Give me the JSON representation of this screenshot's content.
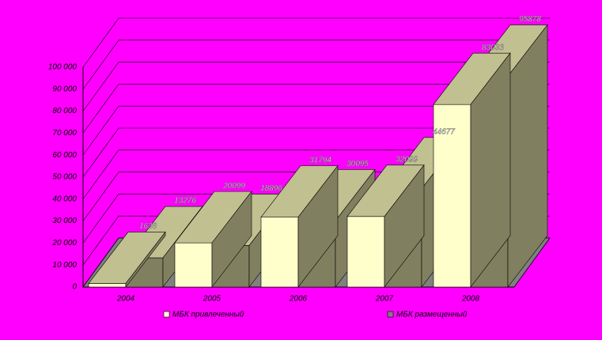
{
  "chart_data": {
    "type": "bar3d",
    "categories": [
      "2004",
      "2005",
      "2006",
      "2007",
      "2008"
    ],
    "series": [
      {
        "name": "МБК привлеченный",
        "color": "#ffffcc",
        "values": [
          1638,
          20099,
          31794,
          32099,
          83033
        ]
      },
      {
        "name": "МБК размещенный",
        "color": "#808080",
        "values": [
          13276,
          18896,
          30095,
          44677,
          95878
        ]
      }
    ],
    "ylim": [
      0,
      100000
    ],
    "yticks": [
      0,
      {
        "value": 10000,
        "label": "10 000"
      },
      {
        "value": 20000,
        "label": "20 000"
      },
      {
        "value": 30000,
        "label": "30 000"
      },
      {
        "value": 40000,
        "label": "40 000"
      },
      {
        "value": 50000,
        "label": "50 000"
      },
      {
        "value": 60000,
        "label": "60 000"
      },
      {
        "value": 70000,
        "label": "70 000"
      },
      {
        "value": 80000,
        "label": "80 000"
      },
      {
        "value": 90000,
        "label": "90 000"
      },
      {
        "value": 100000,
        "label": "100 000"
      }
    ],
    "grid": true
  }
}
